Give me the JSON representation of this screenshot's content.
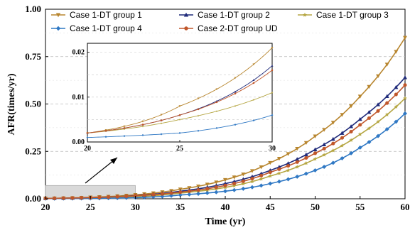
{
  "chart_data": {
    "type": "line",
    "xlabel": "Time (yr)",
    "ylabel": "AFR(times/yr)",
    "xlim": [
      20,
      60
    ],
    "ylim": [
      0,
      1.0
    ],
    "xticks": [
      "20",
      "25",
      "30",
      "35",
      "40",
      "45",
      "50",
      "55",
      "60"
    ],
    "yticks": [
      "0.00",
      "0.25",
      "0.50",
      "0.75",
      "1.00"
    ],
    "grid": "horizontal dashed",
    "legend_placement": "top",
    "series": [
      {
        "name": "Case 1-DT group 1",
        "color": "#b8862f",
        "marker": "triangle-down",
        "x": [
          20,
          25,
          30,
          35,
          40,
          45,
          50,
          55,
          60
        ],
        "y": [
          0.002,
          0.008,
          0.021,
          0.05,
          0.1,
          0.19,
          0.33,
          0.54,
          0.85
        ]
      },
      {
        "name": "Case 1-DT group 2",
        "color": "#1f2a7a",
        "marker": "triangle-up",
        "x": [
          20,
          25,
          30,
          35,
          40,
          45,
          50,
          55,
          60
        ],
        "y": [
          0.002,
          0.006,
          0.017,
          0.04,
          0.08,
          0.15,
          0.26,
          0.42,
          0.64
        ]
      },
      {
        "name": "Case 1-DT group 3",
        "color": "#b5a642",
        "marker": "star",
        "x": [
          20,
          25,
          30,
          35,
          40,
          45,
          50,
          55,
          60
        ],
        "y": [
          0.002,
          0.005,
          0.011,
          0.03,
          0.06,
          0.12,
          0.21,
          0.34,
          0.53
        ]
      },
      {
        "name": "Case 1-DT group 4",
        "color": "#2f78c4",
        "marker": "diamond",
        "x": [
          20,
          25,
          30,
          35,
          40,
          45,
          50,
          55,
          60
        ],
        "y": [
          0.001,
          0.002,
          0.006,
          0.02,
          0.04,
          0.08,
          0.15,
          0.27,
          0.45
        ]
      },
      {
        "name": "Case 2-DT group UD",
        "color": "#c0562a",
        "marker": "circle",
        "x": [
          20,
          25,
          30,
          35,
          40,
          45,
          50,
          55,
          60
        ],
        "y": [
          0.002,
          0.006,
          0.016,
          0.035,
          0.07,
          0.14,
          0.24,
          0.39,
          0.6
        ]
      }
    ],
    "inset": {
      "xlim": [
        20,
        30
      ],
      "ylim": [
        0,
        0.022
      ],
      "xticks": [
        "20",
        "25",
        "30"
      ],
      "yticks": [
        "0.00",
        "0.01",
        "0.02"
      ]
    },
    "zoom_region": {
      "xlim": [
        20,
        30
      ],
      "ylim": [
        0,
        0.07
      ]
    }
  }
}
